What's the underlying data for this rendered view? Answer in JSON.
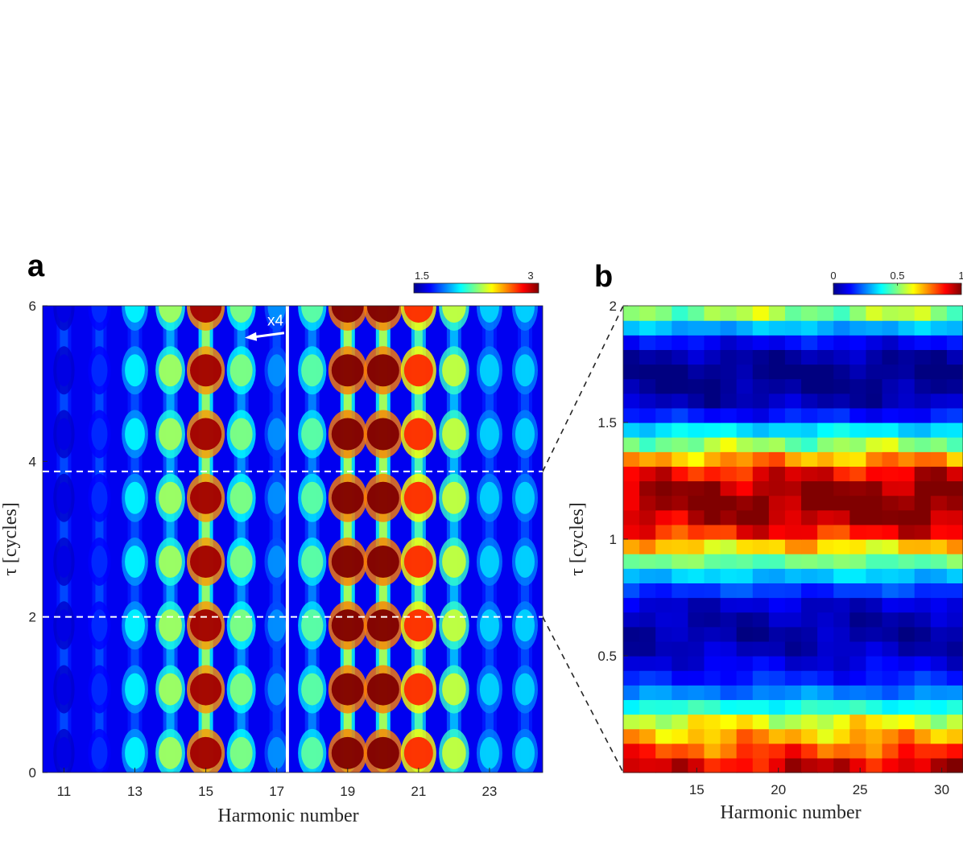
{
  "chart_data": [
    {
      "type": "heatmap",
      "panel_label": "a",
      "xlabel": "Harmonic number",
      "ylabel": "τ [cycles]",
      "xlim": [
        10.4,
        24.5
      ],
      "ylim": [
        0,
        6
      ],
      "x_ticks": [
        11,
        13,
        15,
        17,
        19,
        21,
        23
      ],
      "y_ticks": [
        0,
        2,
        4,
        6
      ],
      "colorbar": {
        "min": 1.5,
        "max": 3,
        "tick_labels": [
          "1.5",
          "3"
        ],
        "colormap": "jet"
      },
      "harmonics": {
        "numbers": [
          11,
          12,
          13,
          14,
          15,
          16,
          17,
          18,
          19,
          20,
          21,
          22,
          23,
          24
        ],
        "peak_intensity": [
          1.65,
          1.75,
          2.05,
          2.3,
          2.95,
          2.25,
          1.9,
          2.2,
          3.0,
          3.0,
          2.75,
          2.35,
          2.0,
          2.0
        ]
      },
      "modulation_period_cycles": 0.82,
      "divider_at_harmonic": 17.3,
      "annotation": {
        "text": "x4",
        "arrow_direction": "left",
        "x": 16.6,
        "y": 5.62
      },
      "dashed_lines_tau": [
        3.87,
        2.0
      ]
    },
    {
      "type": "heatmap",
      "panel_label": "b",
      "xlabel": "Harmonic number",
      "ylabel": "τ [cycles]",
      "xlim": [
        10.5,
        31.3
      ],
      "ylim": [
        0,
        2
      ],
      "x_ticks": [
        15,
        20,
        25,
        30
      ],
      "y_ticks": [
        0.5,
        1,
        1.5,
        2
      ],
      "y_tick_labels": [
        "0.5",
        "1",
        "1.5",
        "2"
      ],
      "colorbar": {
        "min": 0,
        "max": 1,
        "tick_values": [
          0,
          0.5,
          1
        ],
        "tick_labels": [
          "0",
          "0.5",
          "1"
        ],
        "colormap": "jet"
      },
      "grid": {
        "columns": 21,
        "rows": 32
      },
      "row_profile_bottom_to_top": [
        0.88,
        0.8,
        0.7,
        0.6,
        0.4,
        0.25,
        0.15,
        0.1,
        0.06,
        0.04,
        0.05,
        0.08,
        0.18,
        0.32,
        0.48,
        0.66,
        0.84,
        0.94,
        0.98,
        0.95,
        0.86,
        0.72,
        0.52,
        0.35,
        0.14,
        0.05,
        0.02,
        0.01,
        0.04,
        0.12,
        0.3,
        0.52
      ]
    }
  ]
}
